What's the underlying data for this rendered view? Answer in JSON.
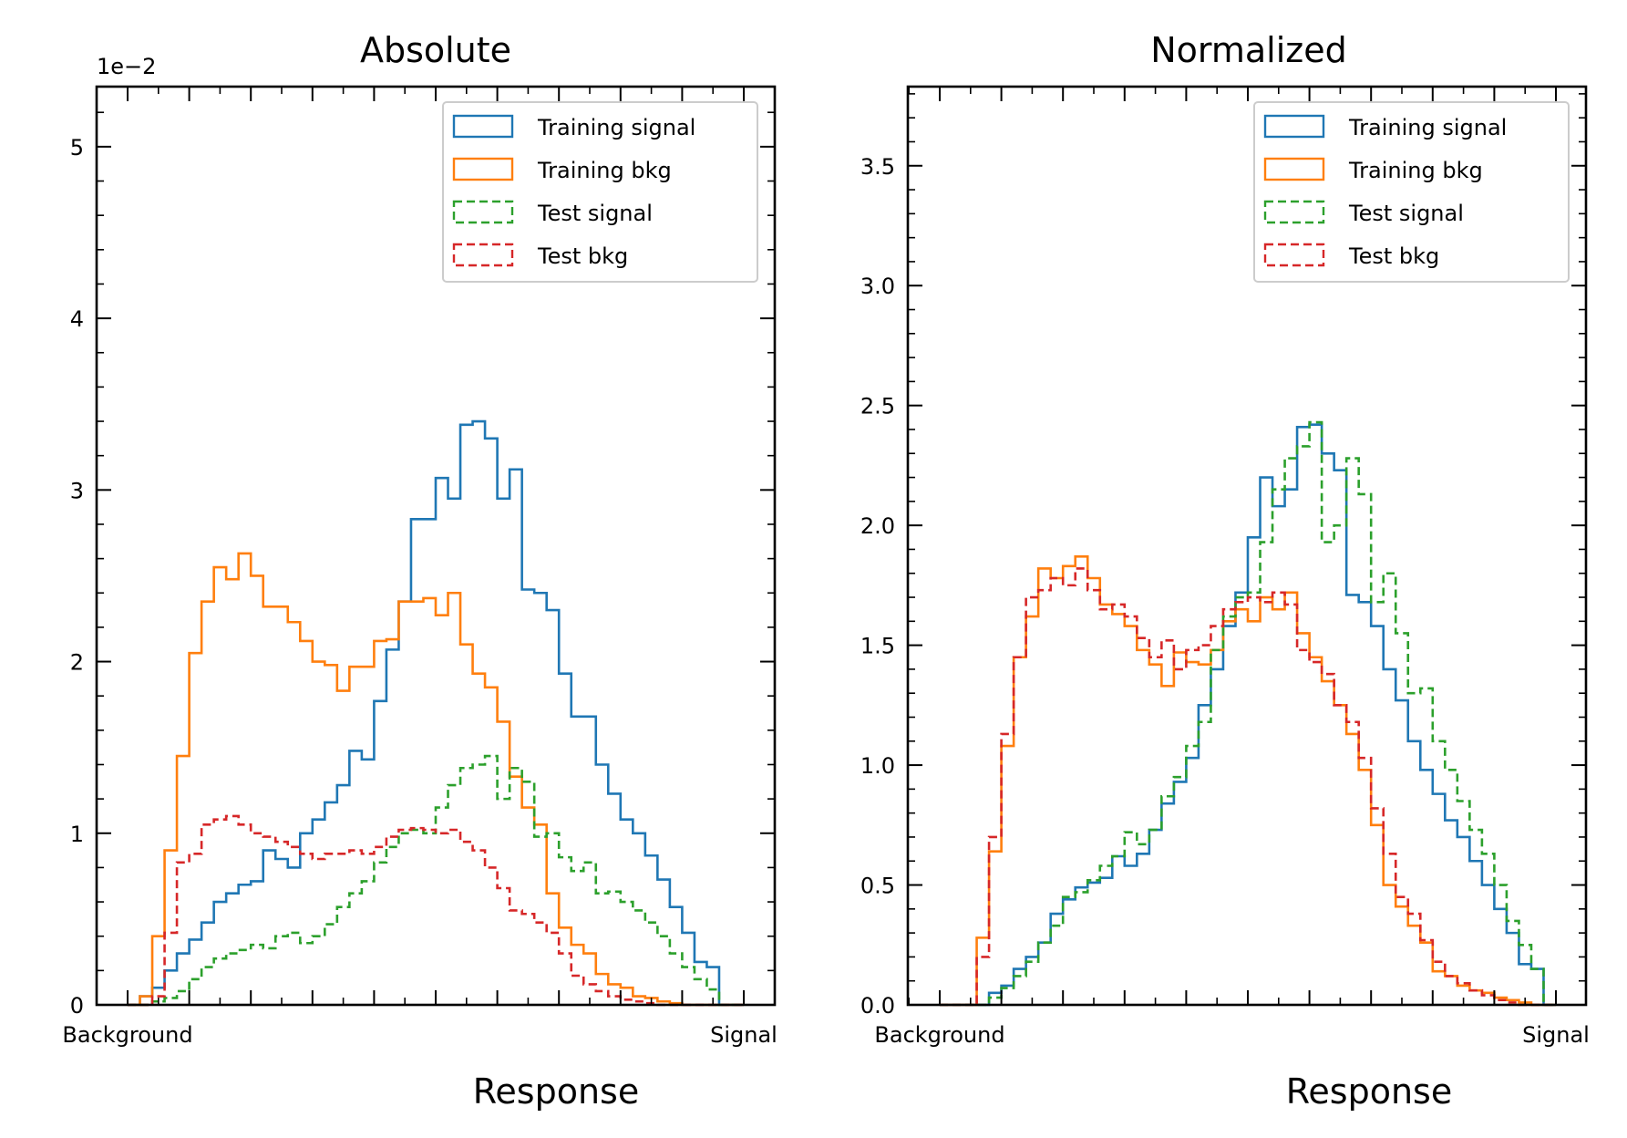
{
  "colors": {
    "training_signal": "#1f77b4",
    "training_bkg": "#ff7f0e",
    "test_signal": "#2ca02c",
    "test_bkg": "#d62728"
  },
  "chart_data": [
    {
      "type": "step",
      "title": "Absolute",
      "xlabel": "Response",
      "x_tick_labels": [
        "Background",
        "Signal"
      ],
      "x_range": [
        0,
        1
      ],
      "bins": 50,
      "ylim": [
        0,
        5.35
      ],
      "y_ticks": [
        0,
        1,
        2,
        3,
        4,
        5
      ],
      "y_tick_labels": [
        "0",
        "1",
        "2",
        "3",
        "4",
        "5"
      ],
      "y_minor_step": 0.2,
      "y_exponent_label": "1e−2",
      "legend_position": "top-right",
      "series": [
        {
          "name": "Training signal",
          "style": "solid",
          "color_key": "training_signal",
          "values": [
            0,
            0.05,
            0.1,
            0.2,
            0.3,
            0.38,
            0.48,
            0.6,
            0.65,
            0.7,
            0.72,
            0.9,
            0.85,
            0.8,
            1.0,
            1.08,
            1.18,
            1.28,
            1.48,
            1.43,
            1.77,
            2.07,
            2.35,
            2.83,
            2.83,
            3.07,
            2.95,
            3.38,
            3.4,
            3.3,
            2.95,
            3.12,
            2.42,
            2.4,
            2.3,
            1.93,
            1.68,
            1.68,
            1.4,
            1.23,
            1.08,
            1.0,
            0.87,
            0.73,
            0.57,
            0.42,
            0.25,
            0.22,
            0,
            0
          ]
        },
        {
          "name": "Training bkg",
          "style": "solid",
          "color_key": "training_bkg",
          "values": [
            0,
            0.05,
            0.4,
            0.9,
            1.45,
            2.05,
            2.35,
            2.55,
            2.48,
            2.63,
            2.5,
            2.32,
            2.32,
            2.23,
            2.12,
            2.0,
            1.98,
            1.83,
            1.97,
            1.97,
            2.12,
            2.13,
            2.35,
            2.35,
            2.37,
            2.27,
            2.4,
            2.1,
            1.93,
            1.85,
            1.65,
            1.33,
            1.15,
            1.05,
            0.65,
            0.45,
            0.35,
            0.3,
            0.18,
            0.12,
            0.1,
            0.05,
            0.04,
            0.02,
            0.01,
            0,
            0,
            0,
            0,
            0
          ]
        },
        {
          "name": "Test signal",
          "style": "dashed",
          "color_key": "test_signal",
          "values": [
            0,
            0,
            0.02,
            0.04,
            0.08,
            0.15,
            0.22,
            0.27,
            0.3,
            0.32,
            0.35,
            0.33,
            0.4,
            0.42,
            0.36,
            0.4,
            0.47,
            0.57,
            0.65,
            0.72,
            0.83,
            0.92,
            1.0,
            1.02,
            1.0,
            1.15,
            1.28,
            1.38,
            1.4,
            1.45,
            1.2,
            1.38,
            1.3,
            0.98,
            1.0,
            0.86,
            0.78,
            0.83,
            0.65,
            0.66,
            0.6,
            0.55,
            0.48,
            0.4,
            0.3,
            0.22,
            0.15,
            0.09,
            0,
            0
          ]
        },
        {
          "name": "Test bkg",
          "style": "dashed",
          "color_key": "test_bkg",
          "values": [
            0,
            0,
            0.05,
            0.42,
            0.83,
            0.88,
            1.05,
            1.08,
            1.1,
            1.05,
            1.0,
            0.98,
            0.95,
            0.92,
            0.88,
            0.85,
            0.88,
            0.88,
            0.9,
            0.88,
            0.92,
            0.98,
            1.02,
            1.03,
            1.02,
            1.0,
            1.02,
            0.95,
            0.9,
            0.8,
            0.68,
            0.55,
            0.53,
            0.48,
            0.42,
            0.3,
            0.17,
            0.12,
            0.08,
            0.05,
            0.03,
            0.02,
            0.01,
            0,
            0,
            0,
            0,
            0,
            0,
            0
          ]
        }
      ]
    },
    {
      "type": "step",
      "title": "Normalized",
      "xlabel": "Response",
      "x_tick_labels": [
        "Background",
        "Signal"
      ],
      "x_range": [
        0,
        1
      ],
      "bins": 50,
      "ylim": [
        0,
        3.83
      ],
      "y_ticks": [
        0,
        0.5,
        1.0,
        1.5,
        2.0,
        2.5,
        3.0,
        3.5
      ],
      "y_tick_labels": [
        "0.0",
        "0.5",
        "1.0",
        "1.5",
        "2.0",
        "2.5",
        "3.0",
        "3.5"
      ],
      "y_minor_step": 0.1,
      "legend_position": "top-right",
      "series": [
        {
          "name": "Training signal",
          "style": "solid",
          "color_key": "training_signal",
          "values": [
            0,
            0,
            0,
            0,
            0.05,
            0.08,
            0.15,
            0.2,
            0.26,
            0.38,
            0.44,
            0.49,
            0.51,
            0.53,
            0.62,
            0.58,
            0.63,
            0.73,
            0.84,
            0.93,
            1.03,
            1.25,
            1.4,
            1.58,
            1.72,
            1.95,
            2.2,
            2.08,
            2.15,
            2.41,
            2.42,
            2.3,
            2.23,
            1.71,
            1.68,
            1.58,
            1.4,
            1.27,
            1.1,
            0.98,
            0.88,
            0.77,
            0.7,
            0.6,
            0.5,
            0.4,
            0.3,
            0.17,
            0.15,
            0
          ]
        },
        {
          "name": "Training bkg",
          "style": "solid",
          "color_key": "training_bkg",
          "values": [
            0,
            0,
            0,
            0.28,
            0.64,
            1.08,
            1.45,
            1.62,
            1.82,
            1.78,
            1.83,
            1.87,
            1.78,
            1.67,
            1.63,
            1.58,
            1.48,
            1.42,
            1.33,
            1.47,
            1.43,
            1.42,
            1.48,
            1.6,
            1.65,
            1.6,
            1.7,
            1.65,
            1.72,
            1.55,
            1.45,
            1.35,
            1.25,
            1.13,
            0.98,
            0.75,
            0.5,
            0.41,
            0.33,
            0.26,
            0.14,
            0.12,
            0.08,
            0.06,
            0.05,
            0.03,
            0.02,
            0.01,
            0,
            0
          ]
        },
        {
          "name": "Test signal",
          "style": "dashed",
          "color_key": "test_signal",
          "values": [
            0,
            0,
            0,
            0,
            0.03,
            0.07,
            0.12,
            0.18,
            0.26,
            0.33,
            0.45,
            0.47,
            0.52,
            0.58,
            0.62,
            0.72,
            0.67,
            0.73,
            0.87,
            0.95,
            1.08,
            1.18,
            1.48,
            1.62,
            1.7,
            1.72,
            1.93,
            2.15,
            2.28,
            2.33,
            2.43,
            1.93,
            2.0,
            2.28,
            2.13,
            1.68,
            1.8,
            1.55,
            1.3,
            1.32,
            1.1,
            0.98,
            0.85,
            0.73,
            0.63,
            0.5,
            0.35,
            0.25,
            0.15,
            0
          ]
        },
        {
          "name": "Test bkg",
          "style": "dashed",
          "color_key": "test_bkg",
          "values": [
            0,
            0,
            0,
            0.2,
            0.7,
            1.13,
            1.45,
            1.7,
            1.73,
            1.78,
            1.75,
            1.82,
            1.73,
            1.65,
            1.67,
            1.62,
            1.53,
            1.45,
            1.52,
            1.4,
            1.48,
            1.5,
            1.58,
            1.65,
            1.68,
            1.7,
            1.68,
            1.72,
            1.67,
            1.48,
            1.43,
            1.38,
            1.25,
            1.18,
            1.03,
            0.82,
            0.63,
            0.45,
            0.38,
            0.27,
            0.18,
            0.12,
            0.09,
            0.06,
            0.04,
            0.02,
            0.01,
            0,
            0,
            0
          ]
        }
      ]
    }
  ]
}
